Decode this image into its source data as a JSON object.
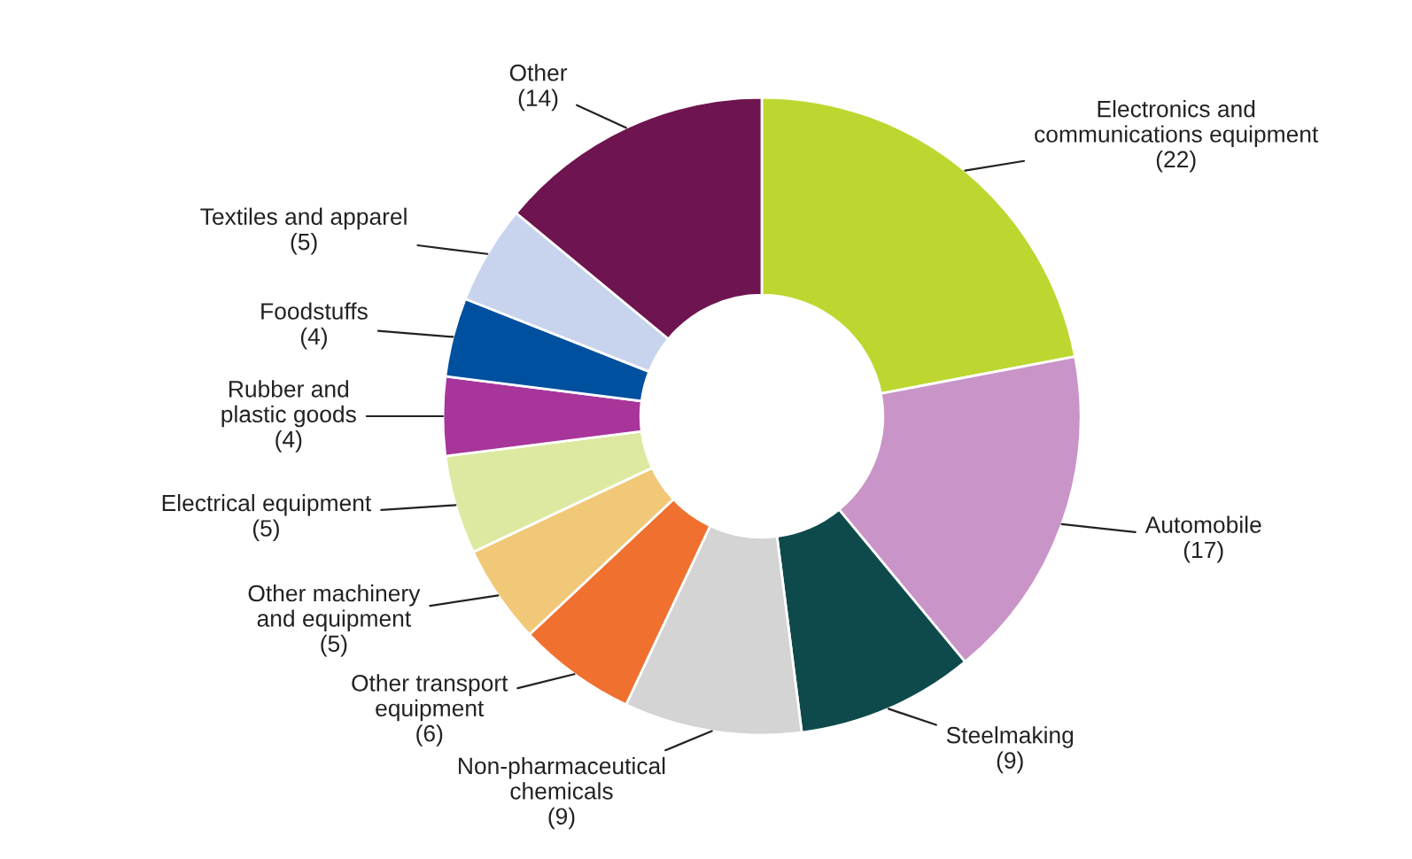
{
  "chart_data": {
    "type": "donut",
    "categories": [
      "Electronics and\ncommunications equipment",
      "Automobile",
      "Steelmaking",
      "Non-pharmaceutical\nchemicals",
      "Other transport\nequipment",
      "Other machinery\nand equipment",
      "Electrical equipment",
      "Rubber and\nplastic goods",
      "Foodstuffs",
      "Textiles and apparel",
      "Other"
    ],
    "values": [
      22,
      17,
      9,
      9,
      6,
      5,
      5,
      4,
      4,
      5,
      14
    ],
    "value_labels": [
      "(22)",
      "(17)",
      "(9)",
      "(9)",
      "(6)",
      "(5)",
      "(5)",
      "(4)",
      "(4)",
      "(5)",
      "(14)"
    ],
    "colors": [
      "#bdd730",
      "#c994c7",
      "#0e4a4c",
      "#d4d4d4",
      "#f07030",
      "#f0c878",
      "#dde9a0",
      "#a8359a",
      "#0050a0",
      "#c8d4ee",
      "#6e1450"
    ]
  }
}
